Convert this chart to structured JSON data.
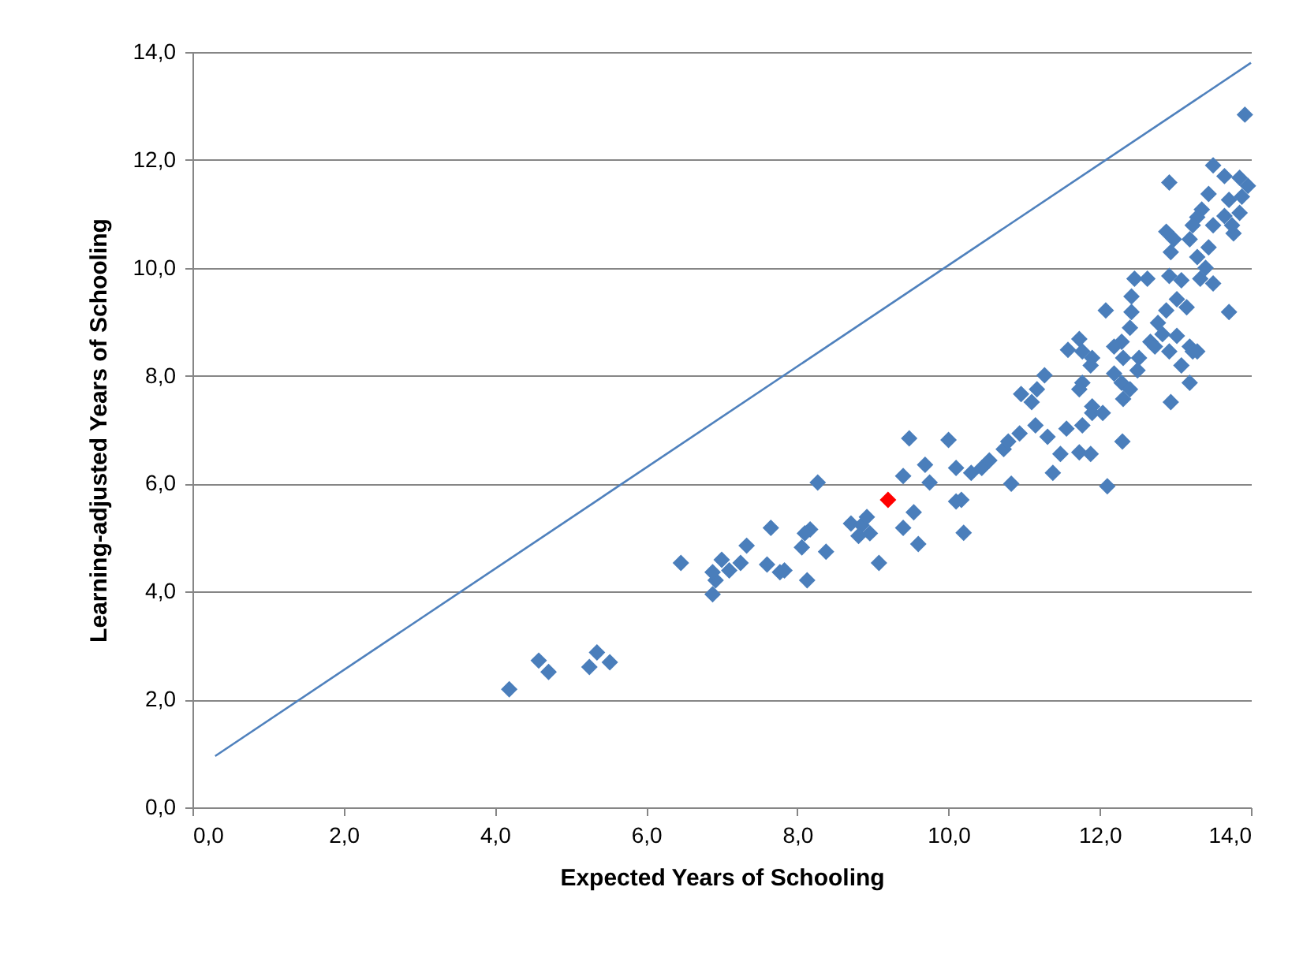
{
  "chart_data": {
    "type": "scatter",
    "xlabel": "Expected Years of Schooling",
    "ylabel": "Learning-adjusted Years of Schooling",
    "xlim": [
      0,
      14
    ],
    "ylim": [
      0,
      14
    ],
    "xticks": [
      {
        "value": 0,
        "label": "0,0"
      },
      {
        "value": 2,
        "label": "2,0"
      },
      {
        "value": 4,
        "label": "4,0"
      },
      {
        "value": 6,
        "label": "6,0"
      },
      {
        "value": 8,
        "label": "8,0"
      },
      {
        "value": 10,
        "label": "10,0"
      },
      {
        "value": 12,
        "label": "12,0"
      },
      {
        "value": 14,
        "label": "14,0"
      }
    ],
    "yticks": [
      {
        "value": 0,
        "label": "0,0"
      },
      {
        "value": 2,
        "label": "2,0"
      },
      {
        "value": 4,
        "label": "4,0"
      },
      {
        "value": 6,
        "label": "6,0"
      },
      {
        "value": 8,
        "label": "8,0"
      },
      {
        "value": 10,
        "label": "10,0"
      },
      {
        "value": 12,
        "label": "12,0"
      },
      {
        "value": 14,
        "label": "14,0"
      }
    ],
    "grid": "y",
    "marker": "diamond",
    "series": [
      {
        "color": "#4a7ebb",
        "x": [
          4.19,
          4.58,
          4.71,
          5.25,
          5.35,
          5.52,
          6.46,
          6.88,
          6.92,
          6.88,
          7.0,
          7.1,
          7.25,
          7.33,
          7.65,
          7.6,
          7.77,
          7.83,
          8.13,
          8.06,
          8.17,
          8.1,
          8.38,
          8.27,
          8.71,
          8.85,
          8.96,
          8.81,
          9.08,
          8.92,
          9.48,
          10.0,
          9.4,
          9.69,
          9.75,
          10.1,
          10.17,
          10.1,
          10.2,
          9.6,
          9.54,
          9.4,
          10.3,
          10.44,
          10.54,
          10.73,
          10.83,
          10.79,
          10.94,
          10.96,
          11.1,
          11.17,
          11.27,
          11.15,
          11.31,
          11.38,
          11.48,
          11.56,
          11.73,
          11.88,
          11.77,
          11.9,
          11.58,
          11.73,
          11.77,
          11.9,
          12.1,
          12.92,
          13.5,
          13.65,
          13.85,
          13.96,
          13.44,
          13.71,
          13.88,
          13.35,
          13.65,
          13.85,
          13.29,
          13.23,
          13.5,
          13.77,
          13.75,
          12.88,
          12.98,
          13.19,
          13.44,
          12.94,
          13.29,
          13.4,
          13.33,
          13.5,
          13.71,
          12.46,
          12.63,
          12.92,
          13.08,
          13.02,
          13.15,
          12.88,
          12.08,
          12.42,
          12.42,
          12.4,
          12.77,
          12.83,
          12.67,
          13.02,
          13.19,
          13.23,
          12.92,
          12.73,
          12.29,
          12.19,
          11.77,
          11.88,
          12.31,
          12.52,
          12.5,
          13.08,
          13.29,
          13.19,
          12.19,
          12.29,
          12.4,
          12.31,
          12.94,
          11.9,
          12.04,
          11.73,
          12.3,
          13.92
        ],
        "values": [
          2.19,
          2.72,
          2.51,
          2.6,
          2.87,
          2.69,
          4.53,
          3.95,
          4.21,
          4.36,
          4.59,
          4.39,
          4.53,
          4.85,
          5.18,
          4.5,
          4.36,
          4.39,
          4.21,
          4.82,
          5.15,
          5.08,
          4.74,
          6.02,
          5.26,
          5.23,
          5.08,
          5.03,
          4.53,
          5.38,
          6.84,
          6.81,
          6.14,
          6.35,
          6.02,
          6.29,
          5.7,
          5.67,
          5.09,
          4.88,
          5.47,
          5.18,
          6.2,
          6.29,
          6.43,
          6.64,
          6.0,
          6.78,
          6.93,
          7.66,
          7.51,
          7.75,
          8.01,
          7.08,
          6.87,
          6.2,
          6.55,
          7.02,
          6.58,
          6.55,
          7.08,
          7.31,
          8.48,
          8.68,
          7.87,
          8.33,
          5.95,
          11.58,
          11.9,
          11.7,
          11.67,
          11.52,
          11.37,
          11.26,
          11.32,
          11.08,
          10.96,
          11.02,
          10.94,
          10.79,
          10.79,
          10.64,
          10.79,
          10.67,
          10.53,
          10.53,
          10.38,
          10.29,
          10.2,
          10.0,
          9.8,
          9.71,
          9.18,
          9.8,
          9.8,
          9.85,
          9.77,
          9.42,
          9.27,
          9.21,
          9.21,
          9.47,
          9.18,
          8.89,
          8.98,
          8.77,
          8.63,
          8.74,
          8.54,
          8.45,
          8.45,
          8.54,
          8.63,
          8.54,
          8.45,
          8.19,
          8.33,
          8.33,
          8.1,
          8.19,
          8.45,
          7.87,
          8.04,
          7.87,
          7.75,
          7.57,
          7.51,
          7.43,
          7.31,
          7.75,
          6.78,
          12.84
        ]
      },
      {
        "type": "scatter",
        "color": "#ff0000",
        "x": [
          9.2
        ],
        "values": [
          5.7
        ]
      },
      {
        "type": "line",
        "color": "#4f81bd",
        "x": [
          0.3,
          14
        ],
        "values": [
          0.95,
          13.8
        ],
        "marker": "none"
      }
    ]
  }
}
